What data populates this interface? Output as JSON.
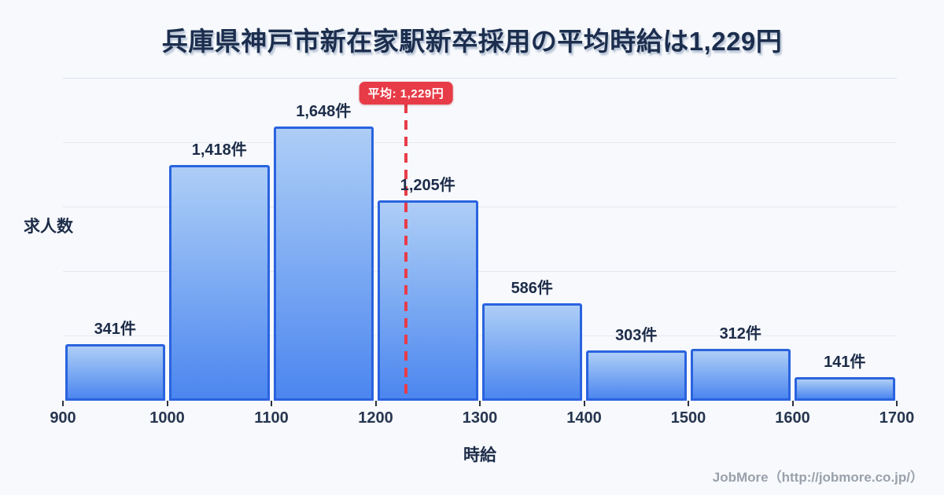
{
  "title": "兵庫県神戸市新在家駅新卒採用の平均時給は1,229円",
  "footer": "JobMore（http://jobmore.co.jp/）",
  "average_badge": {
    "label": "平均: 1,229円"
  },
  "colors": {
    "background": "#f7f9fc",
    "title_text": "#1c2e4e",
    "bar_border": "#2a63df",
    "bar_fill_top": "#aecdf6",
    "bar_fill_bottom": "#4c86ef",
    "average_red": "#e73c48",
    "gridline": "#e4e9f1",
    "footer_text": "#9aa1ab"
  },
  "chart_data": {
    "type": "bar",
    "histogram": true,
    "title": "兵庫県神戸市新在家駅新卒採用の平均時給は1,229円",
    "xlabel": "時給",
    "ylabel": "求人数",
    "bin_edges": [
      900,
      1000,
      1100,
      1200,
      1300,
      1400,
      1500,
      1600,
      1700
    ],
    "values": [
      341,
      1418,
      1648,
      1205,
      586,
      303,
      312,
      141
    ],
    "value_labels": [
      "341件",
      "1,418件",
      "1,648件",
      "1,205件",
      "586件",
      "303件",
      "312件",
      "141件"
    ],
    "value_suffix": "件",
    "average": 1229,
    "average_label": "平均: 1,229円",
    "xlim": [
      900,
      1700
    ],
    "ylim": [
      0,
      1936
    ],
    "grid": {
      "horizontal": true,
      "divisions": 5
    },
    "legend": null
  }
}
